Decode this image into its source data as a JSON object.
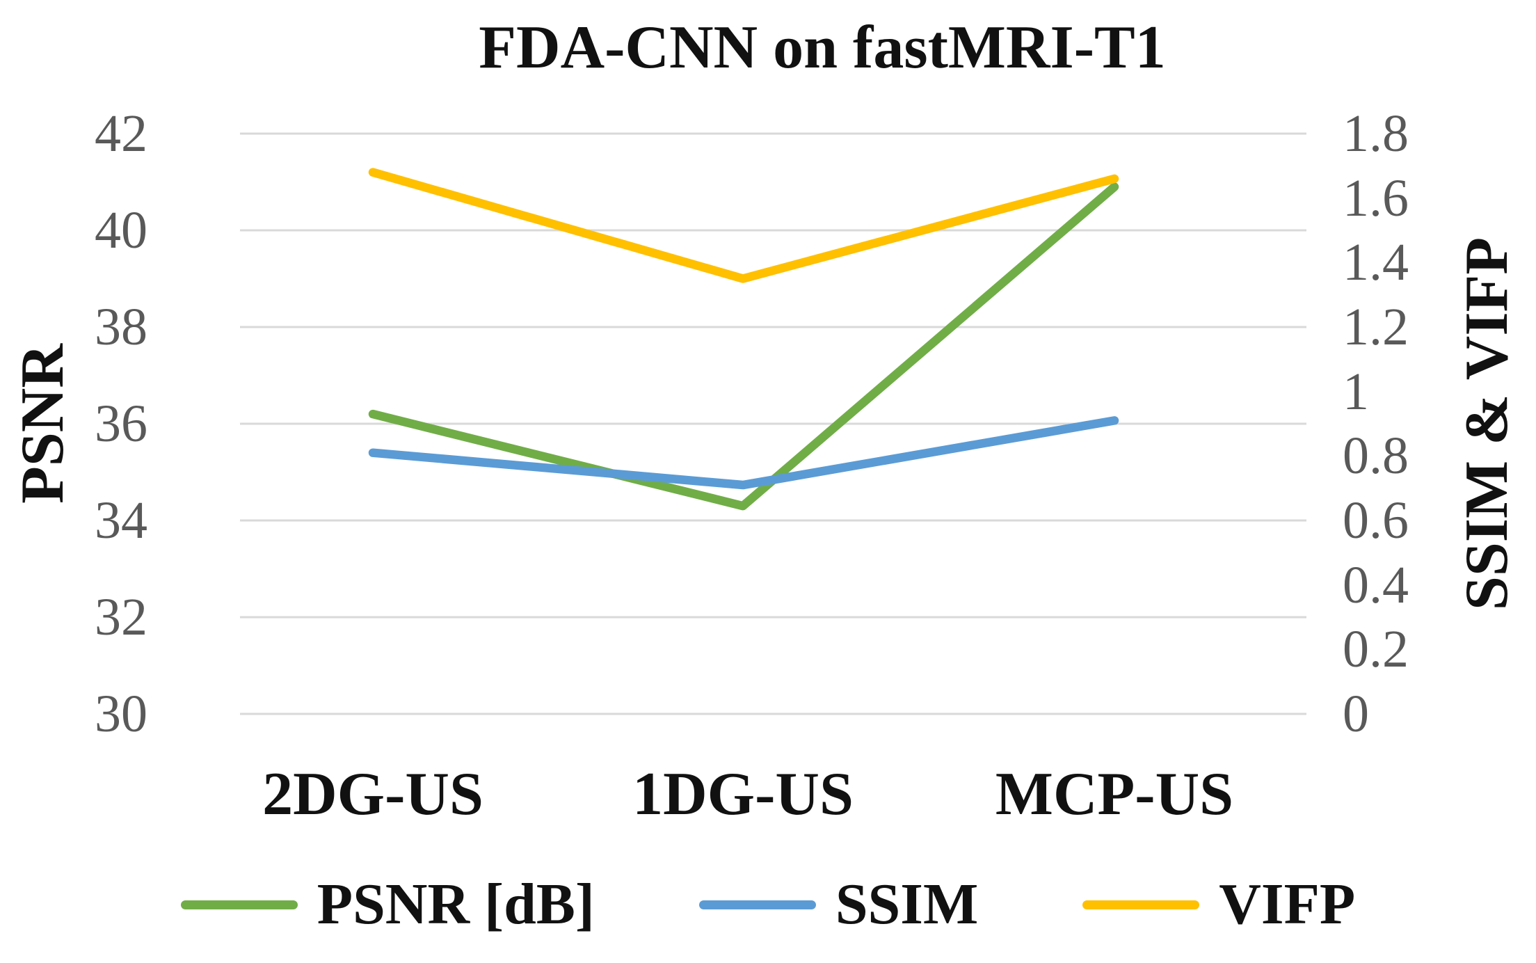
{
  "title": "FDA-CNN on fastMRI-T1",
  "chart_data": {
    "type": "line",
    "title": "FDA-CNN on fastMRI-T1",
    "categories": [
      "2DG-US",
      "1DG-US",
      "MCP-US"
    ],
    "series": [
      {
        "name": "PSNR [dB]",
        "axis": "left",
        "color": "#70AD47",
        "values": [
          36.2,
          34.3,
          40.9
        ]
      },
      {
        "name": "SSIM",
        "axis": "right",
        "color": "#5B9BD5",
        "values": [
          0.81,
          0.71,
          0.91
        ]
      },
      {
        "name": "VIFP",
        "axis": "right",
        "color": "#FFC000",
        "values": [
          1.68,
          1.35,
          1.66
        ]
      }
    ],
    "left_axis": {
      "label": "PSNR",
      "min": 30,
      "max": 42,
      "step": 2,
      "ticks": [
        42,
        40,
        38,
        36,
        34,
        32,
        30
      ]
    },
    "right_axis": {
      "label": "SSIM & VIFP",
      "min": 0,
      "max": 1.8,
      "step": 0.2,
      "ticks": [
        1.8,
        1.6,
        1.4,
        1.2,
        1,
        0.8,
        0.6,
        0.4,
        0.2,
        0
      ]
    },
    "grid": true,
    "legend_position": "bottom",
    "gridline_color": "#D9D9D9",
    "tick_label_color": "#595959",
    "line_width": 12.5
  }
}
